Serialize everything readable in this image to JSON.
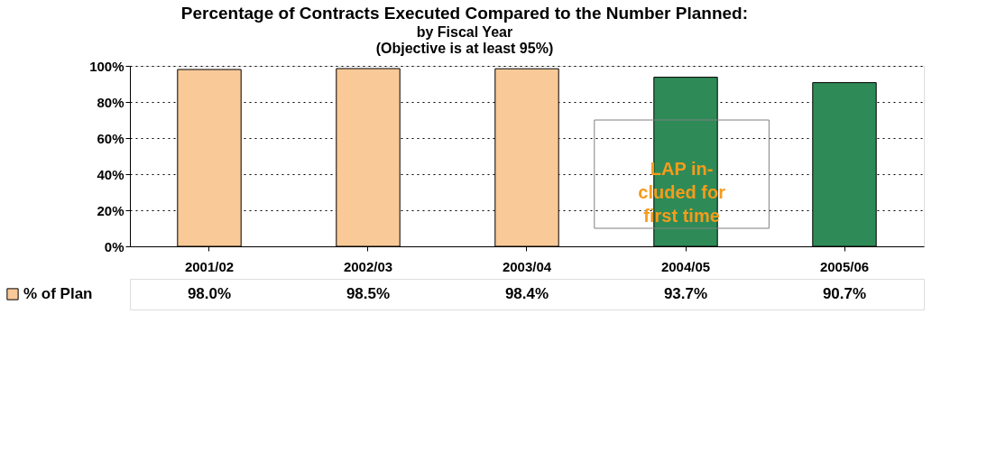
{
  "chart_data": {
    "type": "bar",
    "title": "Percentage of Contracts Executed Compared to the Number Planned:",
    "subtitle": "by Fiscal Year",
    "categories": [
      "2001/02",
      "2002/03",
      "2003/04",
      "2004/05",
      "2005/06"
    ],
    "series": [
      {
        "name": "% of Plan",
        "color": "#f9c997",
        "colors": [
          "#f9c997",
          "#f9c997",
          "#f9c997",
          "#2e8b57",
          "#2e8b57"
        ],
        "values": [
          98.0,
          98.5,
          98.4,
          93.7,
          90.7
        ]
      }
    ],
    "value_labels": [
      "98.0%",
      "98.5%",
      "98.4%",
      "93.7%",
      "90.7%"
    ],
    "ylim": [
      0,
      100
    ],
    "yticks": [
      {
        "value": 0,
        "label": "0%"
      },
      {
        "value": 20,
        "label": "20%"
      },
      {
        "value": 40,
        "label": "40%"
      },
      {
        "value": 60,
        "label": "60%"
      },
      {
        "value": 80,
        "label": "80%"
      },
      {
        "value": 100,
        "label": "100%"
      }
    ],
    "grid": "y",
    "legend": "bottom left",
    "annotations": [
      "(Objective is at least 95%)",
      "LAP in-\ncluded for\nfirst time"
    ]
  }
}
